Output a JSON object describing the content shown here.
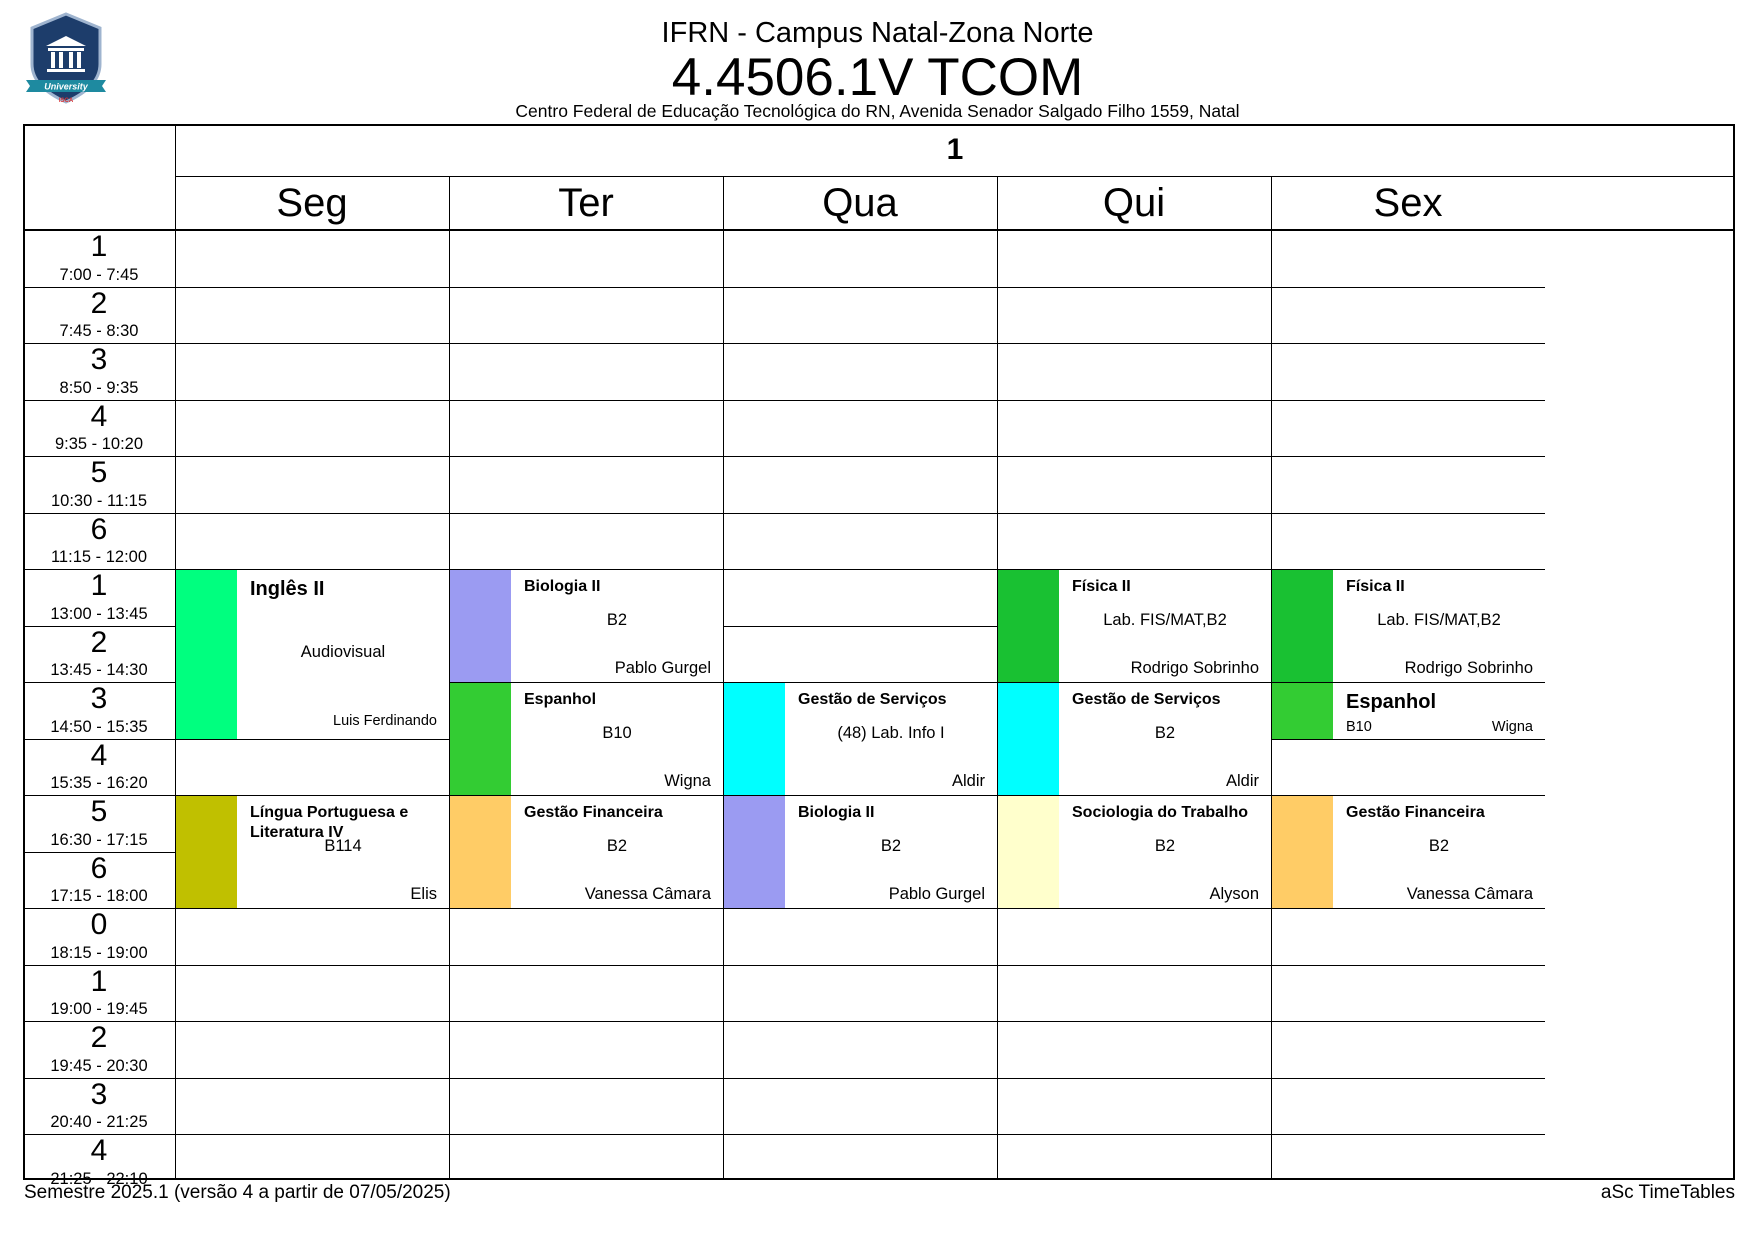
{
  "header": {
    "logo_text": "University",
    "logo_subtext": "ISCA",
    "campus": "IFRN - Campus Natal-Zona Norte",
    "class_name": "4.4506.1V TCOM",
    "address": "Centro Federal de Educação Tecnológica do RN, Avenida Senador Salgado Filho 1559, Natal"
  },
  "timetable": {
    "week": "1",
    "days": [
      "Seg",
      "Ter",
      "Qua",
      "Qui",
      "Sex"
    ],
    "periods": [
      {
        "num": "1",
        "time": "7:00 - 7:45"
      },
      {
        "num": "2",
        "time": "7:45 - 8:30"
      },
      {
        "num": "3",
        "time": "8:50 - 9:35"
      },
      {
        "num": "4",
        "time": "9:35 - 10:20"
      },
      {
        "num": "5",
        "time": "10:30 - 11:15"
      },
      {
        "num": "6",
        "time": "11:15 - 12:00"
      },
      {
        "num": "1",
        "time": "13:00 - 13:45"
      },
      {
        "num": "2",
        "time": "13:45 - 14:30"
      },
      {
        "num": "3",
        "time": "14:50 - 15:35"
      },
      {
        "num": "4",
        "time": "15:35 - 16:20"
      },
      {
        "num": "5",
        "time": "16:30 - 17:15"
      },
      {
        "num": "6",
        "time": "17:15 - 18:00"
      },
      {
        "num": "0",
        "time": "18:15 - 19:00"
      },
      {
        "num": "1",
        "time": "19:00 - 19:45"
      },
      {
        "num": "2",
        "time": "19:45 - 20:30"
      },
      {
        "num": "3",
        "time": "20:40 - 21:25"
      },
      {
        "num": "4",
        "time": "21:25 - 22:10"
      }
    ],
    "lessons": [
      {
        "day": 0,
        "start": 6,
        "span": 3,
        "subject": "Inglês II",
        "room": "Audiovisual",
        "teacher": "Luis Ferdinando",
        "color": "#00ff7f"
      },
      {
        "day": 0,
        "start": 10,
        "span": 2,
        "subject": "Língua Portuguesa e Literatura IV",
        "room": "B114",
        "teacher": "Elis",
        "color": "#c0c000"
      },
      {
        "day": 1,
        "start": 6,
        "span": 2,
        "subject": "Biologia II",
        "room": "B2",
        "teacher": "Pablo Gurgel",
        "color": "#9b9bf2"
      },
      {
        "day": 1,
        "start": 8,
        "span": 2,
        "subject": "Espanhol",
        "room": "B10",
        "teacher": "Wigna",
        "color": "#33cc33"
      },
      {
        "day": 1,
        "start": 10,
        "span": 2,
        "subject": "Gestão Financeira",
        "room": "B2",
        "teacher": "Vanessa Câmara",
        "color": "#ffcc66"
      },
      {
        "day": 2,
        "start": 8,
        "span": 2,
        "subject": "Gestão de Serviços",
        "room": "(48) Lab. Info I",
        "teacher": "Aldir",
        "color": "#00ffff"
      },
      {
        "day": 2,
        "start": 10,
        "span": 2,
        "subject": "Biologia II",
        "room": "B2",
        "teacher": "Pablo Gurgel",
        "color": "#9b9bf2"
      },
      {
        "day": 3,
        "start": 6,
        "span": 2,
        "subject": "Física II",
        "room": "Lab. FIS/MAT,B2",
        "teacher": "Rodrigo Sobrinho",
        "color": "#19c132"
      },
      {
        "day": 3,
        "start": 8,
        "span": 2,
        "subject": "Gestão de Serviços",
        "room": "B2",
        "teacher": "Aldir",
        "color": "#00ffff"
      },
      {
        "day": 3,
        "start": 10,
        "span": 2,
        "subject": "Sociologia do Trabalho",
        "room": "B2",
        "teacher": "Alyson",
        "color": "#ffffcc"
      },
      {
        "day": 4,
        "start": 6,
        "span": 2,
        "subject": "Física II",
        "room": "Lab. FIS/MAT,B2",
        "teacher": "Rodrigo Sobrinho",
        "color": "#19c132"
      },
      {
        "day": 4,
        "start": 8,
        "span": 1,
        "subject": "Espanhol",
        "room": "B10",
        "teacher": "Wigna",
        "color": "#33cc33"
      },
      {
        "day": 4,
        "start": 10,
        "span": 2,
        "subject": "Gestão Financeira",
        "room": "B2",
        "teacher": "Vanessa Câmara",
        "color": "#ffcc66"
      }
    ]
  },
  "footer": {
    "left": "Semestre 2025.1 (versão 4 a partir de 07/05/2025)",
    "right": "aSc TimeTables"
  }
}
